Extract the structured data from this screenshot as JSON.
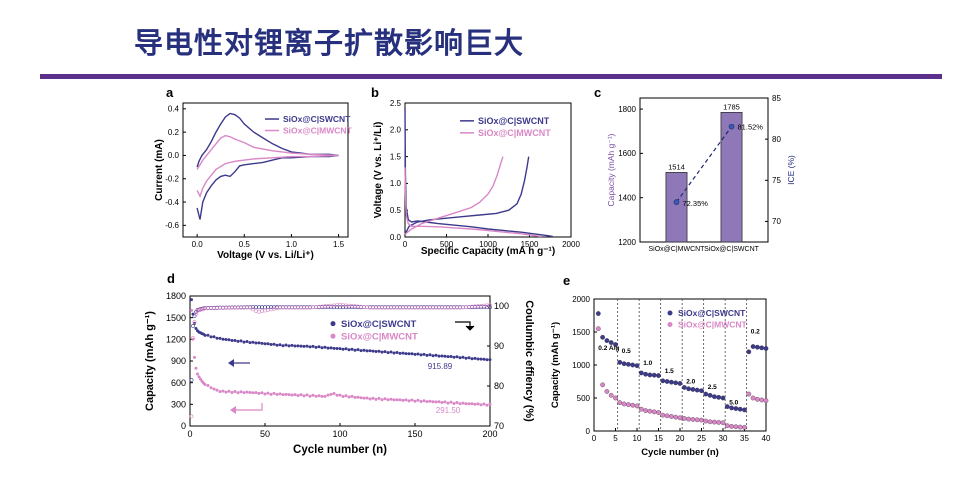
{
  "slide": {
    "title": "导电性对锂离子扩散影响巨大",
    "colors": {
      "title": "#27307d",
      "rule": "#5b2f8a",
      "swcnt": "#3d3a8c",
      "mwcnt": "#d987c6",
      "bar_fill": "#8e78b8"
    }
  },
  "chart_data": [
    {
      "panel": "a",
      "type": "line",
      "xlabel": "Voltage (V vs. Li/Li⁺)",
      "ylabel": "Current (mA)",
      "xlim": [
        -0.15,
        1.6
      ],
      "ylim": [
        -0.7,
        0.45
      ],
      "xticks": [
        "0.0",
        "0.5",
        "1.0",
        "1.5"
      ],
      "yticks": [
        "-0.6",
        "-0.4",
        "-0.2",
        "0.0",
        "0.2",
        "0.4"
      ],
      "legend": [
        "SiOx@C|SWCNT",
        "SiOx@C|MWCNT"
      ],
      "legend_position": "top-right",
      "series": [
        {
          "name": "SiOx@C|SWCNT",
          "color": "#3d3a8c",
          "x": [
            0.0,
            0.02,
            0.05,
            0.1,
            0.15,
            0.2,
            0.25,
            0.3,
            0.35,
            0.4,
            0.45,
            0.5,
            0.6,
            0.7,
            0.8,
            0.9,
            1.0,
            1.1,
            1.2,
            1.3,
            1.4,
            1.5,
            1.4,
            1.2,
            1.0,
            0.9,
            0.8,
            0.7,
            0.6,
            0.5,
            0.45,
            0.4,
            0.35,
            0.3,
            0.25,
            0.2,
            0.15,
            0.1,
            0.06,
            0.03,
            0.0
          ],
          "y": [
            -0.1,
            -0.05,
            0.0,
            0.05,
            0.12,
            0.2,
            0.27,
            0.33,
            0.36,
            0.35,
            0.32,
            0.27,
            0.2,
            0.15,
            0.1,
            0.06,
            0.03,
            0.02,
            0.01,
            0.01,
            0.01,
            0.0,
            -0.01,
            -0.01,
            -0.02,
            -0.02,
            -0.04,
            -0.06,
            -0.07,
            -0.08,
            -0.09,
            -0.14,
            -0.18,
            -0.17,
            -0.18,
            -0.21,
            -0.26,
            -0.32,
            -0.4,
            -0.55,
            -0.45
          ]
        },
        {
          "name": "SiOx@C|MWCNT",
          "color": "#d987c6",
          "x": [
            0.0,
            0.03,
            0.06,
            0.1,
            0.15,
            0.2,
            0.25,
            0.3,
            0.35,
            0.4,
            0.5,
            0.6,
            0.8,
            1.0,
            1.2,
            1.5,
            1.2,
            1.0,
            0.8,
            0.6,
            0.5,
            0.4,
            0.3,
            0.2,
            0.15,
            0.1,
            0.06,
            0.03,
            0.0
          ],
          "y": [
            -0.12,
            -0.08,
            -0.04,
            0.0,
            0.05,
            0.1,
            0.15,
            0.17,
            0.16,
            0.14,
            0.11,
            0.07,
            0.04,
            0.02,
            0.01,
            0.0,
            -0.01,
            -0.01,
            -0.02,
            -0.03,
            -0.04,
            -0.05,
            -0.07,
            -0.12,
            -0.17,
            -0.22,
            -0.28,
            -0.35,
            -0.3
          ]
        }
      ]
    },
    {
      "panel": "b",
      "type": "line",
      "xlabel": "Specific Capacity (mA h g⁻¹)",
      "ylabel": "Voltage (V vs. Li⁺/Li)",
      "xlim": [
        0,
        2000
      ],
      "ylim": [
        0,
        2.5
      ],
      "xticks": [
        "0",
        "500",
        "1000",
        "1500",
        "2000"
      ],
      "yticks": [
        "0.0",
        "0.5",
        "1.0",
        "1.5",
        "2.0",
        "2.5"
      ],
      "legend": [
        "SiOx@C|SWCNT",
        "SiOx@C|MWCNT"
      ],
      "legend_position": "top-right",
      "series": [
        {
          "name": "SiOx@C|SWCNT",
          "color": "#3d3a8c",
          "discharge": {
            "x": [
              0,
              5,
              15,
              40,
              80,
              150,
              250,
              400,
              600,
              800,
              1000,
              1200,
              1400,
              1550,
              1700,
              1780
            ],
            "y": [
              2.4,
              1.2,
              0.55,
              0.32,
              0.28,
              0.3,
              0.28,
              0.25,
              0.22,
              0.19,
              0.15,
              0.12,
              0.09,
              0.06,
              0.03,
              0.01
            ]
          },
          "charge": {
            "x": [
              0,
              50,
              150,
              300,
              500,
              700,
              900,
              1100,
              1250,
              1350,
              1400,
              1440,
              1470,
              1490
            ],
            "y": [
              0.05,
              0.2,
              0.28,
              0.32,
              0.35,
              0.38,
              0.41,
              0.44,
              0.5,
              0.62,
              0.8,
              1.05,
              1.3,
              1.5
            ]
          }
        },
        {
          "name": "SiOx@C|MWCNT",
          "color": "#d987c6",
          "discharge": {
            "x": [
              0,
              5,
              15,
              40,
              80,
              200,
              400,
              600,
              800,
              1000,
              1200,
              1400,
              1550,
              1640
            ],
            "y": [
              1.3,
              0.8,
              0.4,
              0.25,
              0.2,
              0.2,
              0.19,
              0.17,
              0.15,
              0.12,
              0.09,
              0.06,
              0.03,
              0.01
            ]
          },
          "charge": {
            "x": [
              0,
              80,
              200,
              400,
              600,
              800,
              900,
              1000,
              1060,
              1110,
              1150,
              1180
            ],
            "y": [
              0.05,
              0.15,
              0.25,
              0.35,
              0.45,
              0.55,
              0.65,
              0.8,
              0.95,
              1.15,
              1.35,
              1.5
            ]
          }
        }
      ]
    },
    {
      "panel": "c",
      "type": "bar",
      "categories": [
        "SiOx@C|MWCNT",
        "SiOx@C|SWCNT"
      ],
      "ylabel": "Capacity (mAh g⁻¹)",
      "ylim": [
        1200,
        1850
      ],
      "yticks": [
        "1200",
        "1400",
        "1600",
        "1800"
      ],
      "y2label": "ICE (%)",
      "y2lim": [
        67.5,
        85
      ],
      "y2ticks": [
        "70",
        "75",
        "80",
        "85"
      ],
      "series": [
        {
          "name": "Capacity",
          "values": [
            1514,
            1785
          ],
          "labels": [
            "1514",
            "1785"
          ]
        },
        {
          "name": "ICE",
          "values": [
            72.35,
            81.52
          ],
          "labels": [
            "72.35%",
            "81.52%"
          ],
          "style": "dashed-line-with-points"
        }
      ]
    },
    {
      "panel": "d",
      "type": "scatter",
      "xlabel": "Cycle number (n)",
      "ylabel": "Capacity (mAh g⁻¹)",
      "y2label": "Coulumbic effiency (%)",
      "xlim": [
        0,
        200
      ],
      "ylim": [
        0,
        1800
      ],
      "y2lim": [
        70,
        102.5
      ],
      "xticks": [
        "0",
        "50",
        "100",
        "150",
        "200"
      ],
      "yticks": [
        "0",
        "300",
        "600",
        "900",
        "1200",
        "1500",
        "1800"
      ],
      "y2ticks": [
        "70",
        "80",
        "90",
        "100"
      ],
      "legend": [
        "SiOx@C|SWCNT",
        "SiOx@C|MWCNT"
      ],
      "legend_position": "center-right",
      "annotations": [
        "915.89",
        "291.50"
      ],
      "series": [
        {
          "name": "SiOx@C|SWCNT",
          "color": "#3d3a8c",
          "axis": "left",
          "x": [
            1,
            2,
            3,
            4,
            5,
            6,
            10,
            20,
            30,
            40,
            50,
            60,
            80,
            100,
            120,
            140,
            160,
            180,
            200
          ],
          "y": [
            1750,
            1550,
            1420,
            1350,
            1320,
            1300,
            1260,
            1210,
            1180,
            1160,
            1140,
            1120,
            1100,
            1070,
            1040,
            1010,
            980,
            950,
            916
          ]
        },
        {
          "name": "SiOx@C|MWCNT",
          "color": "#d987c6",
          "axis": "left",
          "x": [
            1,
            2,
            3,
            4,
            5,
            6,
            8,
            10,
            15,
            20,
            30,
            40,
            50,
            60,
            70,
            80,
            90,
            95,
            100,
            110,
            120,
            140,
            160,
            180,
            200
          ],
          "y": [
            1600,
            1200,
            950,
            800,
            720,
            680,
            620,
            580,
            520,
            480,
            470,
            465,
            450,
            440,
            430,
            420,
            410,
            450,
            420,
            400,
            380,
            360,
            340,
            315,
            292
          ]
        },
        {
          "name": "SiOx@C|SWCNT CE",
          "color": "#3d3a8c",
          "axis": "right",
          "x": [
            1,
            2,
            3,
            4,
            5,
            10,
            20,
            40,
            60,
            80,
            100,
            120,
            140,
            160,
            180,
            200
          ],
          "y": [
            81.5,
            95,
            97.5,
            98.5,
            99,
            99.5,
            99.6,
            99.7,
            99.7,
            99.7,
            99.7,
            99.7,
            99.7,
            99.7,
            99.7,
            99.7
          ]
        },
        {
          "name": "SiOx@C|MWCNT CE",
          "color": "#d987c6",
          "axis": "right",
          "x": [
            1,
            2,
            3,
            4,
            5,
            10,
            20,
            40,
            45,
            60,
            80,
            100,
            120,
            140,
            160,
            180,
            200
          ],
          "y": [
            72.4,
            92,
            96,
            98,
            98.8,
            99.4,
            99.5,
            99.6,
            98.5,
            99.6,
            99.6,
            100.3,
            99.6,
            99.6,
            99.6,
            99.6,
            100.2
          ]
        }
      ]
    },
    {
      "panel": "e",
      "type": "scatter",
      "xlabel": "Cycle number (n)",
      "ylabel": "Capacity (mAh g⁻¹)",
      "xlim": [
        0,
        40
      ],
      "ylim": [
        0,
        2000
      ],
      "xticks": [
        "0",
        "5",
        "10",
        "15",
        "20",
        "25",
        "30",
        "35",
        "40"
      ],
      "yticks": [
        "0",
        "500",
        "1000",
        "1500",
        "2000"
      ],
      "legend": [
        "SiOx@C|SWCNT",
        "SiOx@C|MWCNT"
      ],
      "legend_position": "top-right",
      "rate_labels": [
        "0.2 A/g",
        "0.5",
        "1.0",
        "1.5",
        "2.0",
        "2.5",
        "5.0",
        "0.2"
      ],
      "segment_boundaries": [
        5.5,
        10.5,
        15.5,
        20.5,
        25.5,
        30.5,
        35.5
      ],
      "series": [
        {
          "name": "SiOx@C|SWCNT",
          "color": "#3d3a8c",
          "x": [
            1,
            2,
            3,
            4,
            5,
            6,
            7,
            8,
            9,
            10,
            11,
            12,
            13,
            14,
            15,
            16,
            17,
            18,
            19,
            20,
            21,
            22,
            23,
            24,
            25,
            26,
            27,
            28,
            29,
            30,
            31,
            32,
            33,
            34,
            35,
            36,
            37,
            38,
            39,
            40
          ],
          "y": [
            1780,
            1420,
            1370,
            1340,
            1310,
            1040,
            1020,
            1010,
            1000,
            990,
            880,
            860,
            850,
            845,
            840,
            760,
            750,
            740,
            730,
            720,
            660,
            640,
            630,
            620,
            610,
            560,
            540,
            520,
            510,
            500,
            370,
            350,
            340,
            330,
            320,
            1200,
            1280,
            1270,
            1260,
            1250
          ]
        },
        {
          "name": "SiOx@C|MWCNT",
          "color": "#d987c6",
          "x": [
            1,
            2,
            3,
            4,
            5,
            6,
            7,
            8,
            9,
            10,
            11,
            12,
            13,
            14,
            15,
            16,
            17,
            18,
            19,
            20,
            21,
            22,
            23,
            24,
            25,
            26,
            27,
            28,
            29,
            30,
            31,
            32,
            33,
            34,
            35,
            36,
            37,
            38,
            39,
            40
          ],
          "y": [
            1550,
            700,
            600,
            540,
            500,
            430,
            410,
            400,
            390,
            380,
            330,
            310,
            300,
            290,
            280,
            240,
            230,
            220,
            210,
            200,
            190,
            180,
            175,
            170,
            165,
            150,
            140,
            135,
            130,
            125,
            80,
            70,
            65,
            60,
            55,
            560,
            500,
            480,
            470,
            460
          ]
        }
      ]
    }
  ]
}
